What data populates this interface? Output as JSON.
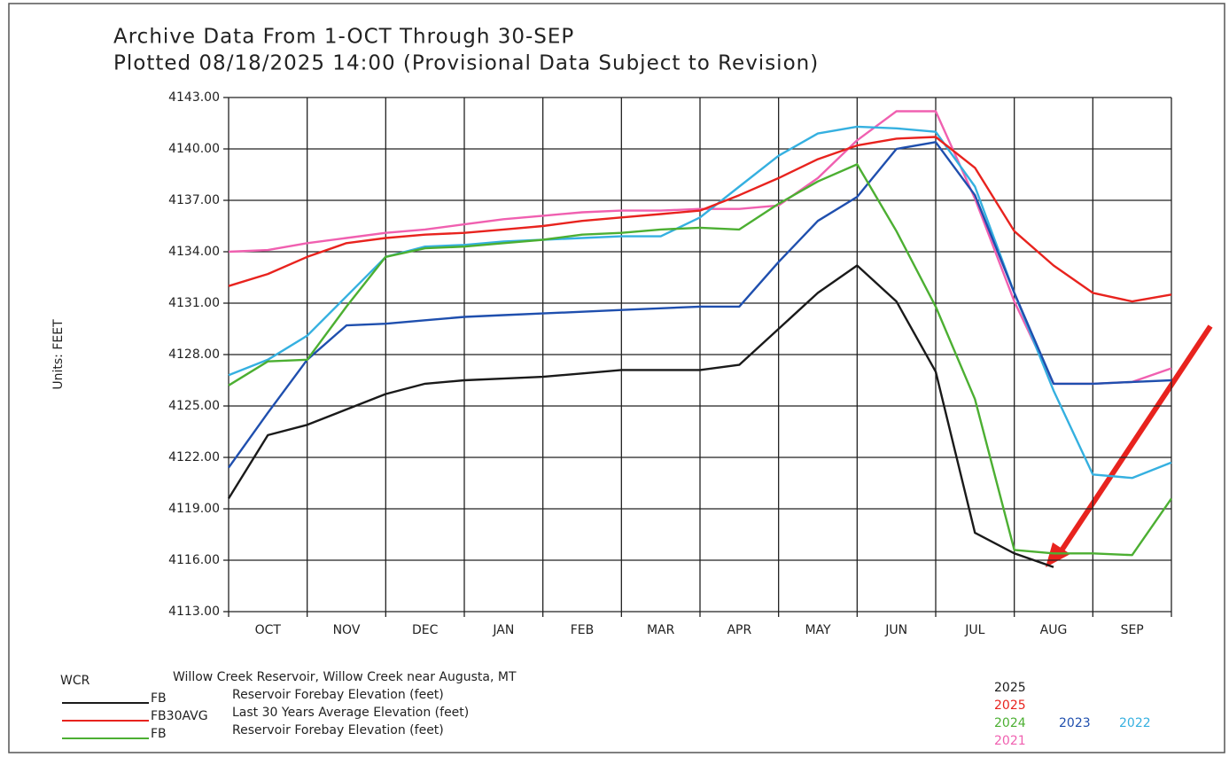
{
  "chart_data": {
    "type": "line",
    "title": "Archive Data From  1-OCT Through 30-SEP",
    "subtitle": "Plotted 08/18/2025  14:00 (Provisional Data Subject to Revision)",
    "ylabel": "Units: FEET",
    "categories": [
      "OCT",
      "NOV",
      "DEC",
      "JAN",
      "FEB",
      "MAR",
      "APR",
      "MAY",
      "JUN",
      "JUL",
      "AUG",
      "SEP"
    ],
    "x": [
      0,
      0.5,
      1,
      1.5,
      2,
      2.5,
      3,
      3.5,
      4,
      4.5,
      5,
      5.5,
      6,
      6.5,
      7,
      7.5,
      8,
      8.5,
      9,
      9.5,
      10,
      10.5,
      11,
      11.5,
      12
    ],
    "xlim": [
      0,
      12
    ],
    "ylim": [
      4113,
      4143
    ],
    "yticks": [
      {
        "value": 4113,
        "label": "4113.00"
      },
      {
        "value": 4116,
        "label": "4116.00"
      },
      {
        "value": 4119,
        "label": "4119.00"
      },
      {
        "value": 4122,
        "label": "4122.00"
      },
      {
        "value": 4125,
        "label": "4125.00"
      },
      {
        "value": 4128,
        "label": "4128.00"
      },
      {
        "value": 4131,
        "label": "4131.00"
      },
      {
        "value": 4134,
        "label": "4134.00"
      },
      {
        "value": 4137,
        "label": "4137.00"
      },
      {
        "value": 4140,
        "label": "4140.00"
      },
      {
        "value": 4143,
        "label": "4143.00"
      }
    ],
    "grid": true,
    "series": [
      {
        "name": "2025",
        "color": "#1a1a1a",
        "values": [
          4119.6,
          4123.3,
          4123.9,
          4124.8,
          4125.7,
          4126.3,
          4126.5,
          4126.6,
          4126.7,
          4126.9,
          4127.1,
          4127.1,
          4127.1,
          4127.4,
          4129.5,
          4131.6,
          4133.2,
          4131.1,
          4127.0,
          4117.6,
          4116.4,
          4115.6,
          null,
          null,
          null
        ]
      },
      {
        "name": "2025",
        "color": "#e8231e",
        "values": [
          4132.0,
          4132.7,
          4133.7,
          4134.5,
          4134.8,
          4135.0,
          4135.1,
          4135.3,
          4135.5,
          4135.8,
          4136.0,
          4136.2,
          4136.4,
          4137.3,
          4138.3,
          4139.4,
          4140.2,
          4140.6,
          4140.7,
          4138.9,
          4135.2,
          4133.2,
          4131.6,
          4131.1,
          4131.5
        ]
      },
      {
        "name": "2024",
        "color": "#4caf32",
        "values": [
          4126.2,
          4127.6,
          4127.7,
          4130.8,
          4133.7,
          4134.2,
          4134.3,
          4134.5,
          4134.7,
          4135.0,
          4135.1,
          4135.3,
          4135.4,
          4135.3,
          4136.8,
          4138.1,
          4139.1,
          4135.2,
          4130.8,
          4125.4,
          4116.6,
          4116.4,
          4116.4,
          4116.3,
          4119.6
        ]
      },
      {
        "name": "2023",
        "color": "#1f4fae",
        "values": [
          4121.4,
          4124.6,
          4127.7,
          4129.7,
          4129.8,
          4130.0,
          4130.2,
          4130.3,
          4130.4,
          4130.5,
          4130.6,
          4130.7,
          4130.8,
          4130.8,
          4133.4,
          4135.8,
          4137.2,
          4140.0,
          4140.4,
          4137.3,
          4131.6,
          4126.3,
          4126.3,
          4126.4,
          4126.5
        ]
      },
      {
        "name": "2022",
        "color": "#35b0e0",
        "values": [
          4126.8,
          4127.7,
          4129.1,
          4131.4,
          4133.7,
          4134.3,
          4134.4,
          4134.6,
          4134.7,
          4134.8,
          4134.9,
          4134.9,
          4136.0,
          4137.8,
          4139.6,
          4140.9,
          4141.3,
          4141.2,
          4141.0,
          4137.8,
          4131.6,
          4125.9,
          4121.0,
          4120.8,
          4121.7
        ]
      },
      {
        "name": "2021",
        "color": "#f060b0",
        "values": [
          4134.0,
          4134.1,
          4134.5,
          4134.8,
          4135.1,
          4135.3,
          4135.6,
          4135.9,
          4136.1,
          4136.3,
          4136.4,
          4136.4,
          4136.5,
          4136.5,
          4136.7,
          4138.3,
          4140.5,
          4142.2,
          4142.2,
          4137.1,
          4131.1,
          4126.3,
          4126.3,
          4126.4,
          4127.2
        ]
      }
    ],
    "station": {
      "code": "WCR",
      "description": "Willow Creek Reservoir, Willow Creek near Augusta, MT"
    },
    "legend_rows": [
      {
        "code": "FB",
        "description": "Reservoir Forebay Elevation (feet)",
        "color": "#1a1a1a"
      },
      {
        "code": "FB30AVG",
        "description": "Last 30 Years Average Elevation (feet)",
        "color": "#e8231e"
      },
      {
        "code": "FB",
        "description": "Reservoir Forebay Elevation (feet)",
        "color": "#4caf32"
      }
    ]
  }
}
